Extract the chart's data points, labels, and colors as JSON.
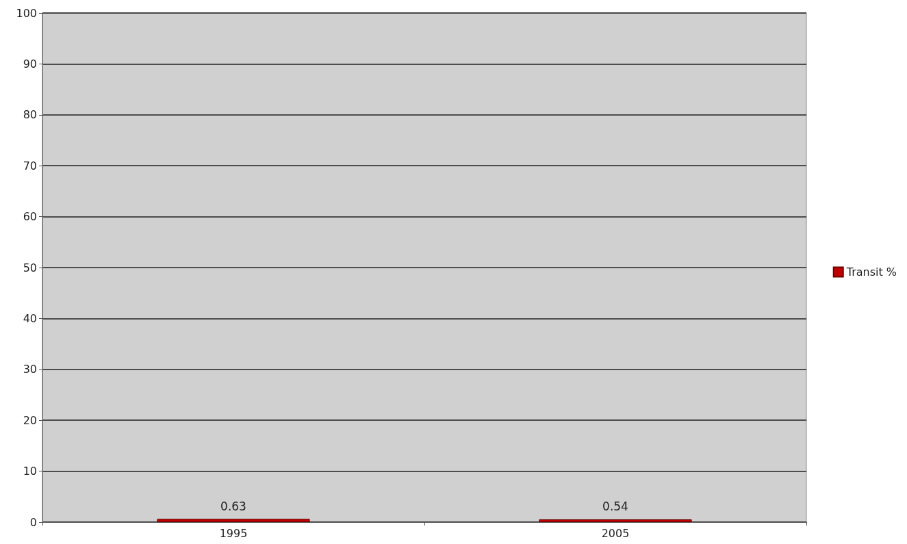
{
  "chart_data": {
    "type": "bar",
    "categories": [
      "1995",
      "2005"
    ],
    "series": [
      {
        "name": "Transit %",
        "color": "#c00000",
        "values": [
          0.63,
          0.54
        ]
      }
    ],
    "ylim": [
      0,
      100
    ],
    "yticks": [
      0,
      10,
      20,
      30,
      40,
      50,
      60,
      70,
      80,
      90,
      100
    ],
    "grid": "y",
    "legend": "right",
    "data_labels": true
  }
}
